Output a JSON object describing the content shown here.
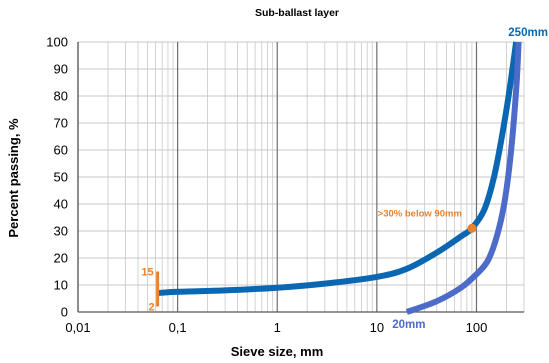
{
  "chart_data": {
    "type": "line",
    "title": "Sub-ballast layer",
    "xlabel": "Sieve size, mm",
    "ylabel": "Percent passing, %",
    "x_scale": "log",
    "xlim": [
      0.01,
      300
    ],
    "ylim": [
      0,
      100
    ],
    "x_ticks": [
      "0,01",
      "0,1",
      "1",
      "10",
      "100"
    ],
    "y_ticks": [
      "0",
      "10",
      "20",
      "30",
      "40",
      "50",
      "60",
      "70",
      "80",
      "90",
      "100"
    ],
    "grid": true,
    "series": [
      {
        "name": "250mm",
        "color": "#0b67b2",
        "x": [
          0.063,
          0.1,
          0.3,
          1,
          3,
          10,
          20,
          40,
          70,
          90,
          120,
          150,
          180,
          210,
          240,
          250
        ],
        "y": [
          7,
          7.5,
          8,
          9,
          10.5,
          13,
          16,
          22,
          28,
          31,
          38,
          50,
          65,
          80,
          95,
          100
        ]
      },
      {
        "name": "20mm",
        "color": "#4d6bc9",
        "x": [
          20,
          40,
          70,
          100,
          130,
          160,
          190,
          220,
          250,
          265
        ],
        "y": [
          0,
          4,
          9,
          14,
          19,
          28,
          40,
          58,
          82,
          100
        ]
      }
    ],
    "annotations": [
      {
        "text": ">30% below 90mm",
        "x": 90,
        "y": 31,
        "color": "#e8822e"
      },
      {
        "text": "15",
        "x": 0.063,
        "y": 15,
        "color": "#e8822e"
      },
      {
        "text": "2",
        "x": 0.063,
        "y": 2,
        "color": "#e8822e"
      }
    ],
    "fines_range": {
      "x": 0.063,
      "y_min": 2,
      "y_max": 15,
      "color": "#e8822e"
    }
  }
}
